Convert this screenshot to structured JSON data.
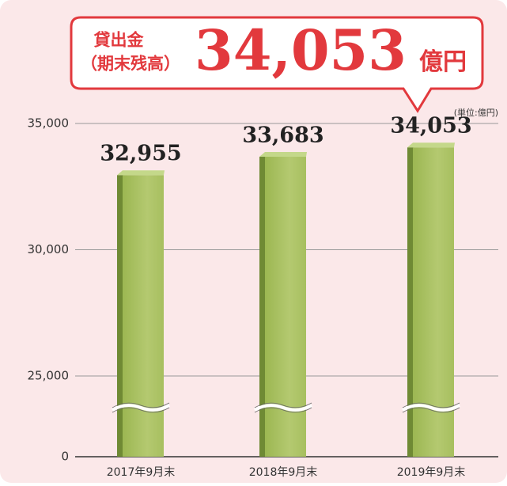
{
  "chart_data": {
    "type": "bar",
    "callout": {
      "title_lines": [
        "貸出金",
        "（期末残高）"
      ],
      "value": "34,053",
      "unit": "億円"
    },
    "unit_label": "(単位:億円)",
    "categories": [
      "2017年9月末",
      "2018年9月末",
      "2019年9月末"
    ],
    "values": [
      32955,
      33683,
      34053
    ],
    "value_labels": [
      "32,955",
      "33,683",
      "34,053"
    ],
    "color": "#a3bd5a",
    "ylim": [
      0,
      35000
    ],
    "yticks": [
      0,
      {
        "value": 25000,
        "label": "25,000"
      },
      {
        "value": 30000,
        "label": "30,000"
      },
      {
        "value": 35000,
        "label": "35,000"
      }
    ],
    "broken_axis": true,
    "grid": true
  }
}
